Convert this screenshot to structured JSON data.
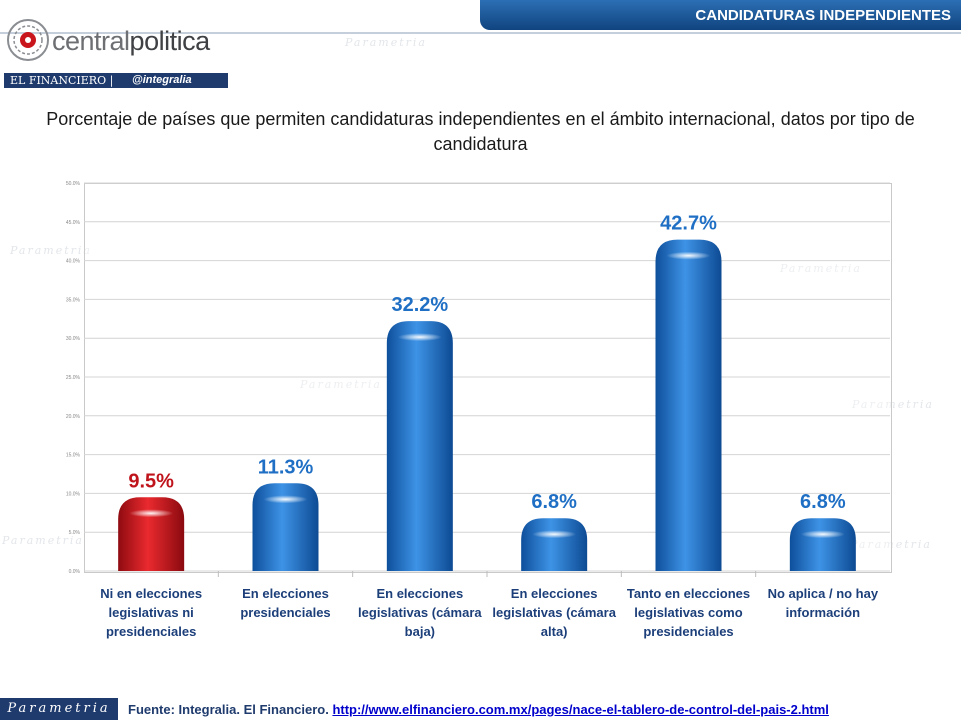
{
  "header": {
    "section_title": "CANDIDATURAS INDEPENDIENTES",
    "logo_text_a": "central",
    "logo_text_b": "politica",
    "partner_a": "EL FINANCIERO |",
    "partner_b": "@integralia"
  },
  "watermark": "Parametria",
  "chart_data": {
    "type": "bar",
    "title": "Porcentaje de países que permiten candidaturas independientes en el ámbito internacional, datos por tipo de candidatura",
    "categories": [
      "Ni en elecciones legislativas ni presidenciales",
      "En elecciones presidenciales",
      "En elecciones legislativas (cámara baja)",
      "En elecciones legislativas (cámara alta)",
      "Tanto en elecciones legislativas como presidenciales",
      "No aplica / no hay información"
    ],
    "values": [
      9.5,
      11.3,
      32.2,
      6.8,
      42.7,
      6.8
    ],
    "data_labels": [
      "9.5%",
      "11.3%",
      "32.2%",
      "6.8%",
      "42.7%",
      "6.8%"
    ],
    "bar_colors": [
      "#d0141c",
      "#1f6fc5",
      "#1f6fc5",
      "#1f6fc5",
      "#1f6fc5",
      "#1f6fc5"
    ],
    "label_colors": [
      "#c0141c",
      "#1f6fc5",
      "#1f6fc5",
      "#1f6fc5",
      "#1f6fc5",
      "#1f6fc5"
    ],
    "y_ticks": [
      "0.0%",
      "5.0%",
      "10.0%",
      "15.0%",
      "20.0%",
      "25.0%",
      "30.0%",
      "35.0%",
      "40.0%",
      "45.0%",
      "50.0%"
    ],
    "ylim": [
      0,
      50
    ],
    "grid": true,
    "xlabel": "",
    "ylabel": ""
  },
  "footer": {
    "logo": "Parametria",
    "source_prefix": "Fuente: Integralia. El Financiero. ",
    "source_link": "http://www.elfinanciero.com.mx/pages/nace-el-tablero-de-control-del-pais-2.html"
  }
}
